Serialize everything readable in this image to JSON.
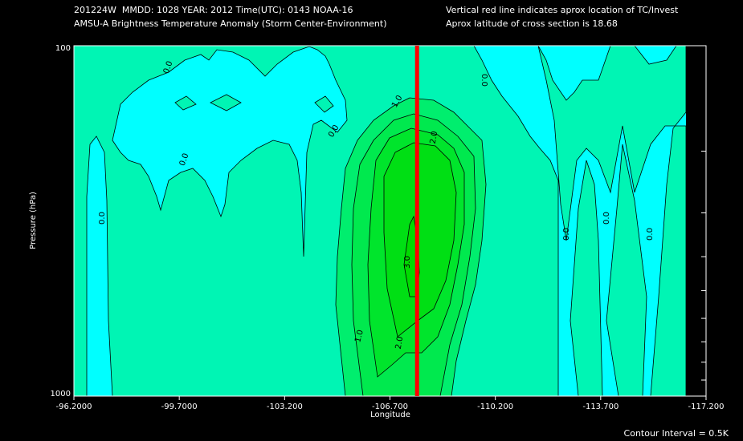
{
  "header": {
    "line1": "201224W  MMDD: 1028 YEAR: 2012 Time(UTC): 0143 NOAA-16",
    "line2": "AMSU-A Brightness Temperature Anomaly (Storm Center-Environment)",
    "line3": "Vertical red line indicates aprox location of TC/Invest",
    "line4": "Aprox latitude of cross section is 18.68"
  },
  "footer": {
    "contour_interval": "Contour Interval = 0.5K"
  },
  "colors": {
    "level_lt0": "#00ffff",
    "level_0": "#00f5b4",
    "level_1": "#00ee6e",
    "level_2": "#00e52c",
    "level_3": "#00db00",
    "red_line": "#ff0000"
  },
  "chart_data": {
    "type": "contour",
    "title": "AMSU-A Brightness Temperature Anomaly (Storm Center-Environment)",
    "xlabel": "Longitude",
    "ylabel": "Pressure (hPa)",
    "x_tick_labels": [
      "-96.2000",
      "-99.7000",
      "-103.200",
      "-106.700",
      "-110.200",
      "-113.700",
      "-117.200"
    ],
    "xlim": [
      -96.2,
      -117.2
    ],
    "y_tick_labels": [
      "100",
      "1000"
    ],
    "ylim": [
      100,
      1000
    ],
    "y_scale": "log",
    "storm_longitude": -107.6,
    "contour_interval_K": 0.5,
    "contour_labels": [
      "0.0",
      "0.0",
      "0.0",
      "0.0",
      "0.0",
      "0.0",
      "0.0",
      "0.0",
      "0.0",
      "1.0",
      "2.0",
      "3.0",
      "1.0",
      "2.0"
    ],
    "max_anomaly_K": 3.0,
    "max_location": {
      "longitude": -107.0,
      "pressure_hPa": 500
    }
  }
}
